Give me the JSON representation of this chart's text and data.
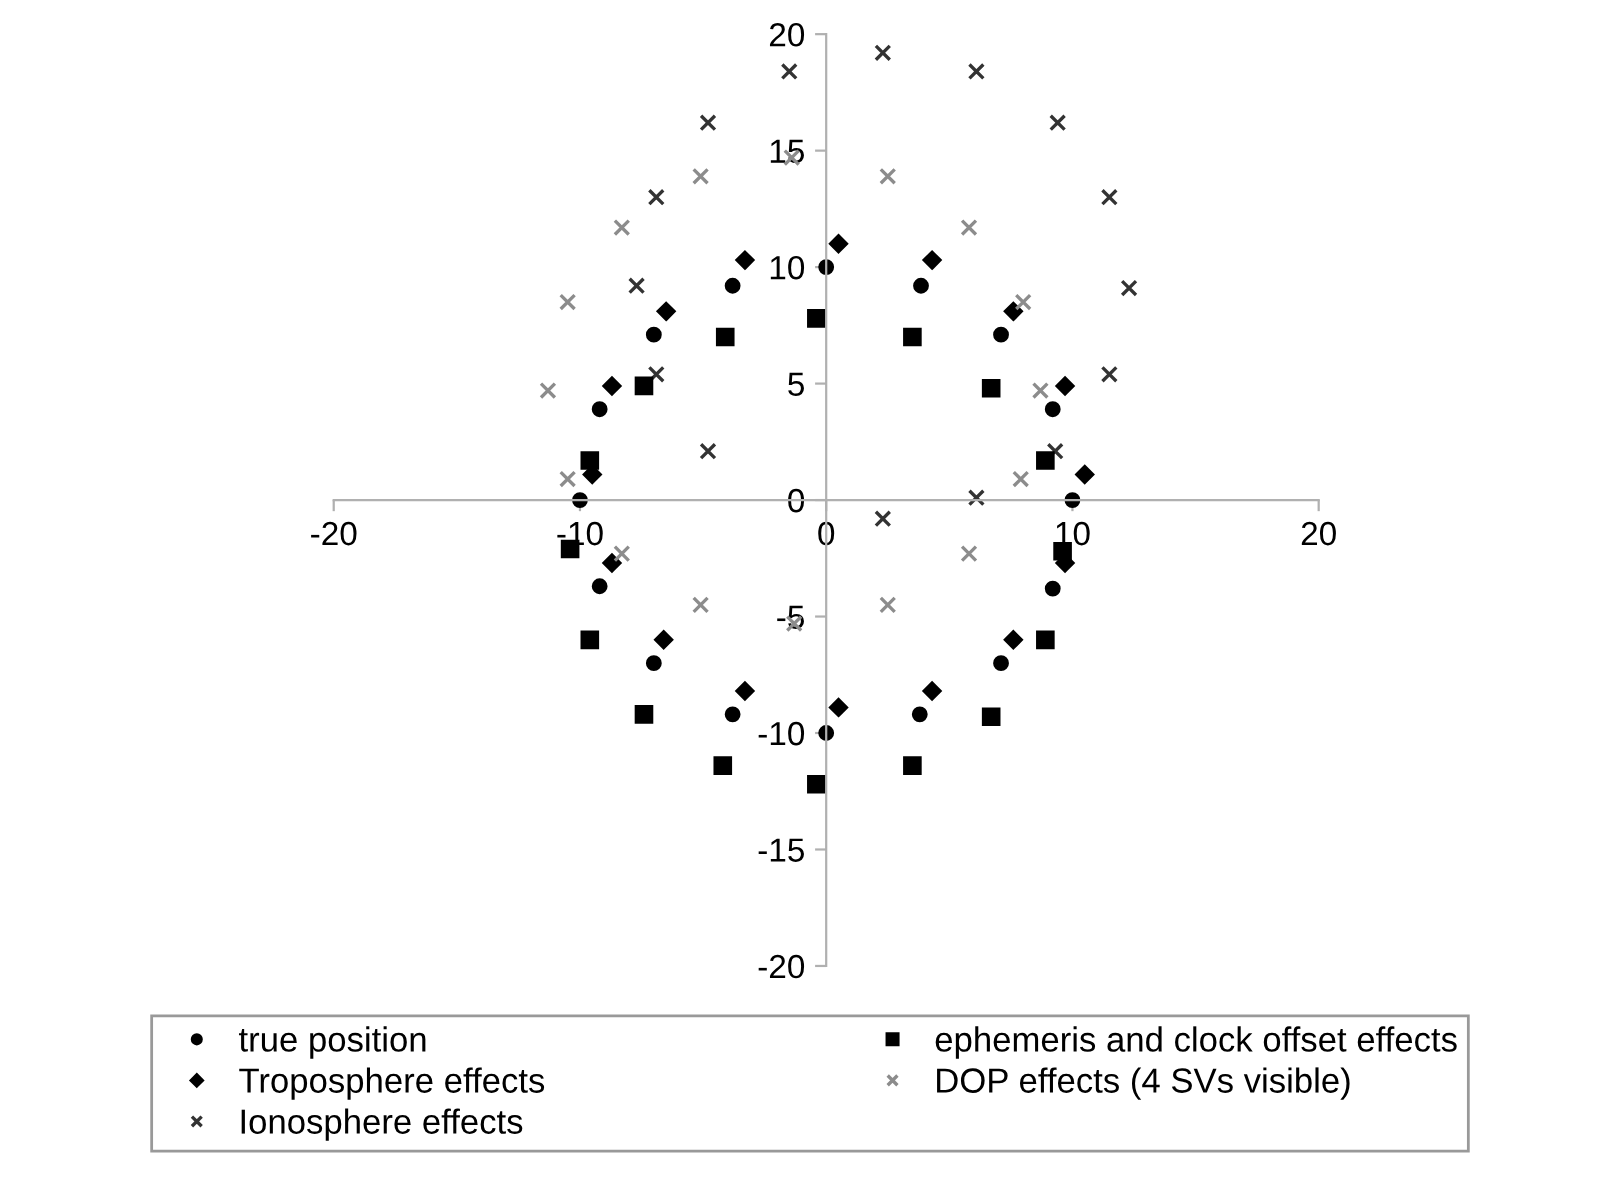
{
  "chart_data": {
    "type": "scatter",
    "xlim": [
      -20,
      20
    ],
    "ylim": [
      -20,
      20
    ],
    "xticks": [
      -20,
      -10,
      0,
      10,
      20
    ],
    "yticks": [
      -20,
      -15,
      -10,
      -5,
      0,
      5,
      10,
      15,
      20
    ],
    "legend": "bottom",
    "grid": false,
    "series": [
      {
        "name": "true position",
        "color": "#000000",
        "marker": "circle",
        "x": [
          0,
          3.85,
          7.1,
          9.2,
          10,
          9.2,
          7.1,
          3.8,
          0,
          -3.8,
          -7,
          -9.2,
          -10,
          -9.2,
          -7,
          -3.8
        ],
        "values": [
          10,
          9.2,
          7.1,
          3.9,
          0,
          -3.8,
          -7,
          -9.2,
          -10,
          -9.2,
          -7,
          -3.7,
          0,
          3.9,
          7.1,
          9.2
        ]
      },
      {
        "name": "Troposphere effects",
        "color": "#000000",
        "marker": "diamond",
        "x": [
          0.5,
          4.3,
          7.6,
          9.7,
          10.5,
          9.7,
          7.6,
          4.3,
          0.5,
          -3.3,
          -6.6,
          -8.7,
          -9.5,
          -8.7,
          -6.5,
          -3.3
        ],
        "values": [
          11,
          10.3,
          8.1,
          4.9,
          1.1,
          -2.7,
          -6,
          -8.2,
          -8.9,
          -8.2,
          -6,
          -2.7,
          1.1,
          4.9,
          8.1,
          10.3
        ]
      },
      {
        "name": "Ionosphere effects",
        "color": "#333333",
        "marker": "cross",
        "x": [
          -1.5,
          -4.8,
          -6.9,
          -7.7,
          -6.9,
          -4.8,
          2.3,
          6.1,
          9.4,
          11.5,
          12.3,
          11.5,
          9.3,
          6.1,
          2.3
        ],
        "values": [
          18.4,
          16.2,
          13,
          9.2,
          5.4,
          2.1,
          19.2,
          18.4,
          16.2,
          13,
          9.1,
          5.4,
          2.1,
          0.1,
          -0.8
        ]
      },
      {
        "name": "ephemeris and clock offset effects",
        "color": "#000000",
        "marker": "square",
        "x": [
          -0.4,
          3.5,
          6.7,
          8.9,
          9.6,
          8.9,
          6.7,
          3.5,
          -0.4,
          -4.2,
          -7.4,
          -9.6,
          -10.4,
          -9.6,
          -7.4,
          -4.1
        ],
        "values": [
          7.8,
          7,
          4.8,
          1.7,
          -2.2,
          -6,
          -9.3,
          -11.4,
          -12.2,
          -11.4,
          -9.2,
          -6,
          -2.1,
          1.7,
          4.9,
          7
        ]
      },
      {
        "name": "DOP effects (4 SVs visible)",
        "color": "#8c8c8c",
        "marker": "cross",
        "x": [
          -1.4,
          -5.1,
          -8.3,
          -10.5,
          -11.3,
          -10.5,
          -8.3,
          -5.1,
          -1.3,
          2.5,
          5.8,
          7.9,
          8.7,
          8,
          5.8,
          2.5
        ],
        "values": [
          14.7,
          13.9,
          11.7,
          8.5,
          4.7,
          0.9,
          -2.3,
          -4.5,
          -5.3,
          -4.5,
          -2.3,
          0.9,
          4.7,
          8.5,
          11.7,
          13.9
        ]
      }
    ]
  }
}
